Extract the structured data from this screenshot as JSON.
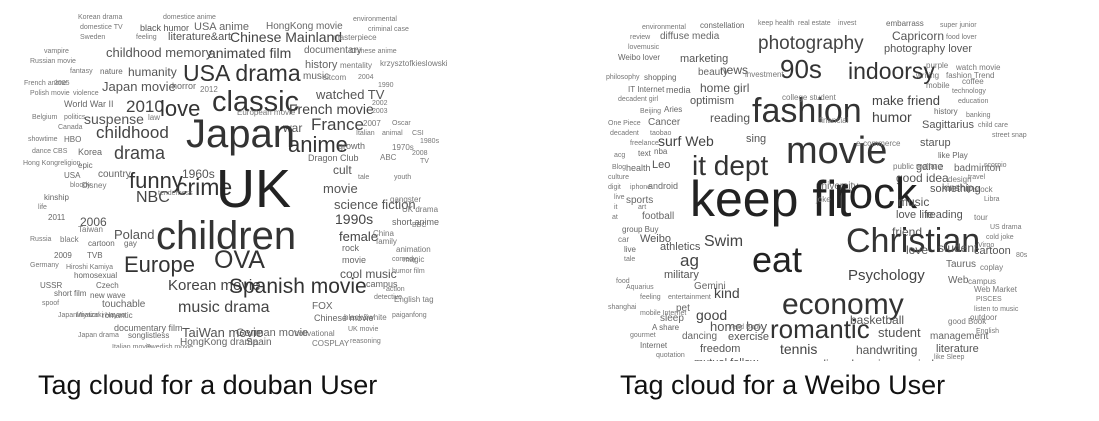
{
  "captions": {
    "douban": "Tag cloud for a douban User",
    "weibo": "Tag cloud for a Weibo User"
  },
  "douban_tags": [
    "Korean drama",
    "domestice anime",
    "domestice TV",
    "black humor",
    "USA anime",
    "HongKong movie",
    "environmental",
    "criminal case",
    "Sweden",
    "feeling",
    "literature&art",
    "Chinese Mainland",
    "masterpiece",
    "vampire",
    "childhood memory",
    "animated film",
    "documentary",
    "Chinese anime",
    "Russian movie",
    "history",
    "mentality",
    "krzysztofkieslowski",
    "fantasy",
    "nature",
    "humanity",
    "USA drama",
    "music",
    "sitcom",
    "2004",
    "1990",
    "French anime",
    "2005",
    "Japan movie",
    "horror",
    "Polish movie",
    "violence",
    "watched TV",
    "World War II",
    "2010",
    "love",
    "classic",
    "French movie",
    "2002",
    "2003",
    "Belgium",
    "politics",
    "suspense",
    "law",
    "Canada",
    "war",
    "France",
    "2007",
    "Oscar",
    "childhood",
    "Italian",
    "animal",
    "CSI",
    "1980s",
    "showtime",
    "HBO",
    "drama",
    "Japan",
    "anime",
    "dance",
    "CBS",
    "Korea",
    "growth",
    "1970s",
    "Dragon Club",
    "ABC",
    "2008",
    "Hong Kong",
    "religion",
    "epic",
    "country",
    "1960s",
    "funny",
    "crime",
    "UK",
    "TV",
    "USA",
    "bloody",
    "Disney",
    "cult",
    "tale",
    "youth",
    "kinship",
    "NBC",
    "tenderness",
    "movie",
    "life",
    "science fiction",
    "gangster",
    "UK drama",
    "2006",
    "1990s",
    "short anime",
    "2011",
    "Taiwan",
    "Poland",
    "female",
    "China",
    "BBC",
    "Russia",
    "black",
    "cartoon",
    "gay",
    "children",
    "family",
    "animation",
    "rock",
    "magic",
    "2009",
    "TVB",
    "Europe",
    "OVA",
    "movie",
    "comedy",
    "Germany",
    "Hiroshi Kamiya",
    "cool music",
    "humor film",
    "homosexual",
    "campus",
    "USSR",
    "Czech",
    "Korean movie",
    "action",
    "short film",
    "new wave",
    "detective",
    "spoof",
    "touchable",
    "Spanish movie",
    "English tag",
    "Japanimation",
    "Miyazaki Hayao",
    "romantic",
    "FOX",
    "paiganfong",
    "black&white",
    "music drama",
    "Chinese movie",
    "documentary film",
    "German movie",
    "TaiWan movie",
    "UK movie",
    "Japan drama",
    "songlistless",
    "HongKong drama",
    "Spain",
    "motivational",
    "reasoning",
    "Italian movie",
    "Swedish movie",
    "COSPLAY",
    "2012",
    "European movie"
  ],
  "weibo_tags": [
    "environmental",
    "constellation",
    "keep health",
    "real estate",
    "invest",
    "embarrass",
    "super junior",
    "review",
    "diffuse media",
    "Capricorn",
    "food lover",
    "lovemusic",
    "photography",
    "photography lover",
    "Weibo lover",
    "marketing",
    "purple",
    "watch movie",
    "beauty",
    "news",
    "writing",
    "fashion Trend",
    "philosophy",
    "shopping",
    "90s",
    "indoorsy",
    "mobile",
    "coffee",
    "IT Internet",
    "media",
    "home girl",
    "technology",
    "decadent girl",
    "optimism",
    "make friend",
    "education",
    "Beijing",
    "Aries",
    "fashion",
    "One Piece",
    "Cancer",
    "reading",
    "humor",
    "history",
    "banking",
    "decadent",
    "taobao",
    "child care",
    "freelance",
    "surf Web",
    "sing",
    "Sagittarius",
    "street snap",
    "acg",
    "text",
    "nba",
    "starup",
    "like Play",
    "Blog",
    "movie",
    "culture",
    "health",
    "Leo",
    "game",
    "badminton",
    "it dept",
    "good idea",
    "design",
    "travel",
    "scorpio",
    "digit",
    "iphone",
    "android",
    "kinship",
    "stock",
    "live",
    "sports",
    "university",
    "something",
    "Libra",
    "it",
    "art",
    "keep fit",
    "rock",
    "joke",
    "music",
    "tour",
    "at",
    "football",
    "group Buy",
    "love life",
    "reading",
    "US drama",
    "car",
    "Weibo",
    "friend",
    "cold joke",
    "Virgo",
    "live",
    "athletics",
    "ag",
    "Swim",
    "Christian",
    "love",
    "student",
    "cartoon",
    "80s",
    "tale",
    "eat",
    "Taurus",
    "coplay",
    "military",
    "food",
    "Aquarius",
    "Psychology",
    "Web",
    "campus",
    "feeling",
    "entertainment",
    "Gemini",
    "Web Market",
    "shanghai",
    "pet",
    "kind",
    "mobile Internet",
    "economy",
    "PISCES",
    "sleep",
    "good",
    "listen to music",
    "A share",
    "home boy",
    "basketball",
    "outdoor",
    "good Book",
    "read Book",
    "gourmet",
    "dancing",
    "exercise",
    "romantic",
    "student",
    "management",
    "English",
    "Internet",
    "freedom",
    "literature",
    "quotation",
    "tennis",
    "handwriting",
    "like Sleep",
    "advertisement",
    "mutual follow",
    "online shopping",
    "peace mind",
    "hairdress",
    "investment",
    "college student",
    "financial",
    "e-commerce",
    "public welfare"
  ]
}
